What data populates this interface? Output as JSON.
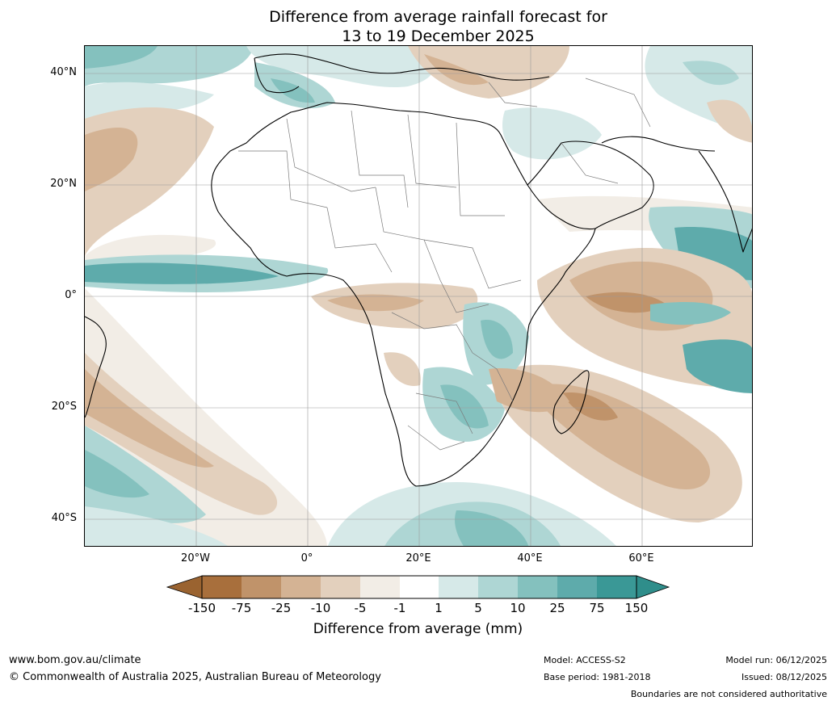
{
  "title": {
    "line1": "Difference from average rainfall forecast for",
    "line2": "13 to 19 December 2025"
  },
  "map": {
    "lat_labels": [
      "40°N",
      "20°N",
      "0°",
      "20°S",
      "40°S"
    ],
    "lon_labels": [
      "20°W",
      "0°",
      "20°E",
      "40°E",
      "60°E"
    ]
  },
  "colorbar": {
    "title": "Difference from average (mm)",
    "tick_labels": [
      "-150",
      "-75",
      "-25",
      "-10",
      "-5",
      "-1",
      "1",
      "5",
      "10",
      "25",
      "75",
      "150"
    ],
    "colors": [
      "#a86f3c",
      "#c0936a",
      "#d4b394",
      "#e3d0bd",
      "#f2ede6",
      "#ffffff",
      "#d6e9e8",
      "#aed6d4",
      "#84c1be",
      "#5eabab",
      "#3a9896"
    ],
    "under_color": "#9a6330",
    "over_color": "#2f8e8b"
  },
  "footer": {
    "website": "www.bom.gov.au/climate",
    "copyright": "© Commonwealth of Australia 2025, Australian Bureau of Meteorology",
    "model": "Model: ACCESS-S2",
    "base_period": "Base period: 1981-2018",
    "model_run": "Model run: 06/12/2025",
    "issued": "Issued: 08/12/2025",
    "boundaries_note": "Boundaries are not considered authoritative"
  }
}
